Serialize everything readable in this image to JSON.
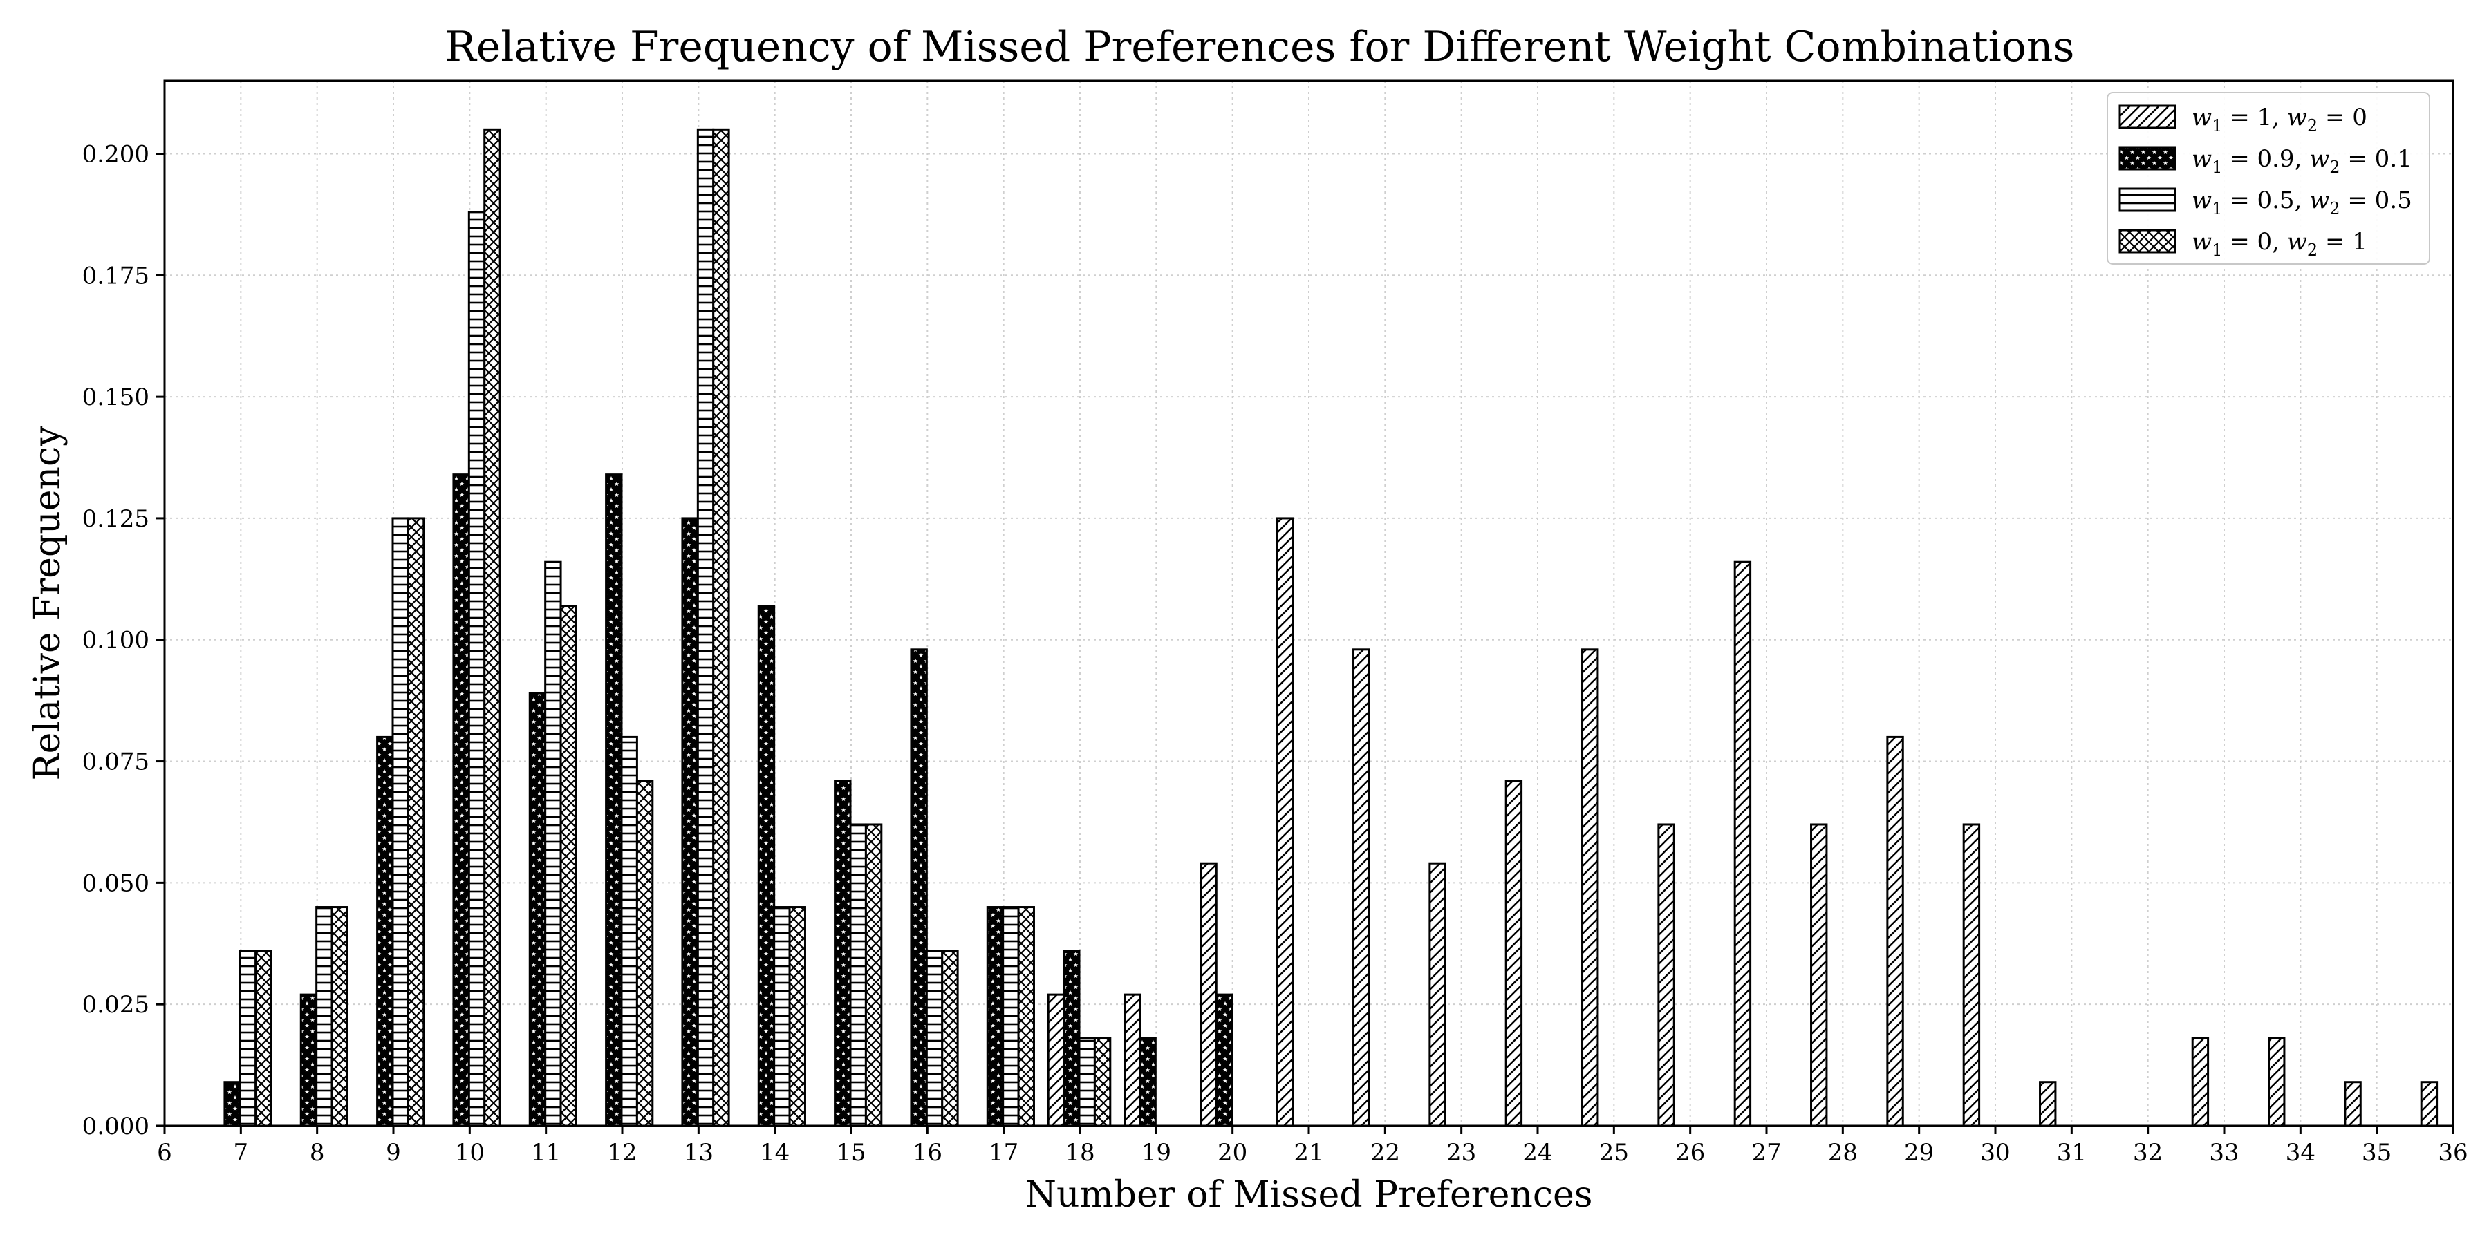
{
  "chart_data": {
    "type": "bar",
    "title": "Relative Frequency of Missed Preferences for Different Weight Combinations",
    "xlabel": "Number of Missed Preferences",
    "ylabel": "Relative Frequency",
    "xlim": [
      6,
      36
    ],
    "ylim": [
      0,
      0.215
    ],
    "grid": true,
    "legend_placement": "top-right",
    "x_ticks": [
      6,
      7,
      8,
      9,
      10,
      11,
      12,
      13,
      14,
      15,
      16,
      17,
      18,
      19,
      20,
      21,
      22,
      23,
      24,
      25,
      26,
      27,
      28,
      29,
      30,
      31,
      32,
      33,
      34,
      35,
      36
    ],
    "y_ticks": [
      "0.000",
      "0.025",
      "0.050",
      "0.075",
      "0.100",
      "0.125",
      "0.150",
      "0.175",
      "0.200"
    ],
    "categories": [
      7,
      8,
      9,
      10,
      11,
      12,
      13,
      14,
      15,
      16,
      17,
      18,
      19,
      20,
      21,
      22,
      23,
      24,
      25,
      26,
      27,
      28,
      29,
      30,
      31,
      32,
      33,
      34,
      35,
      36
    ],
    "series": [
      {
        "name": "w1 = 1, w2 = 0",
        "legend_parts": [
          "w",
          "1",
          " = 1, ",
          "w",
          "2",
          " = 0"
        ],
        "pattern": "diagonal",
        "values": [
          0,
          0,
          0,
          0,
          0,
          0,
          0,
          0,
          0,
          0,
          0,
          0.027,
          0.027,
          0.054,
          0.125,
          0.098,
          0.054,
          0.071,
          0.098,
          0.062,
          0.116,
          0.062,
          0.08,
          0.062,
          0.009,
          0,
          0.018,
          0.018,
          0.009,
          0.009
        ]
      },
      {
        "name": "w1 = 0.9, w2 = 0.1",
        "legend_parts": [
          "w",
          "1",
          " = 0.9, ",
          "w",
          "2",
          " = 0.1"
        ],
        "pattern": "stars",
        "values": [
          0.009,
          0.027,
          0.08,
          0.134,
          0.089,
          0.134,
          0.125,
          0.107,
          0.071,
          0.098,
          0.045,
          0.036,
          0.018,
          0.027,
          0,
          0,
          0,
          0,
          0,
          0,
          0,
          0,
          0,
          0,
          0,
          0,
          0,
          0,
          0,
          0
        ]
      },
      {
        "name": "w1 = 0.5, w2 = 0.5",
        "legend_parts": [
          "w",
          "1",
          " = 0.5, ",
          "w",
          "2",
          " = 0.5"
        ],
        "pattern": "horizontal",
        "values": [
          0.036,
          0.045,
          0.125,
          0.188,
          0.116,
          0.08,
          0.205,
          0.045,
          0.062,
          0.036,
          0.045,
          0.018,
          0,
          0,
          0,
          0,
          0,
          0,
          0,
          0,
          0,
          0,
          0,
          0,
          0,
          0,
          0,
          0,
          0,
          0
        ]
      },
      {
        "name": "w1 = 0, w2 = 1",
        "legend_parts": [
          "w",
          "1",
          " = 0, ",
          "w",
          "2",
          " = 1"
        ],
        "pattern": "crosshatch",
        "values": [
          0.036,
          0.045,
          0.125,
          0.205,
          0.107,
          0.071,
          0.205,
          0.045,
          0.062,
          0.036,
          0.045,
          0.018,
          0,
          0,
          0,
          0,
          0,
          0,
          0,
          0,
          0,
          0,
          0,
          0,
          0,
          0,
          0,
          0,
          0,
          0
        ]
      }
    ]
  }
}
